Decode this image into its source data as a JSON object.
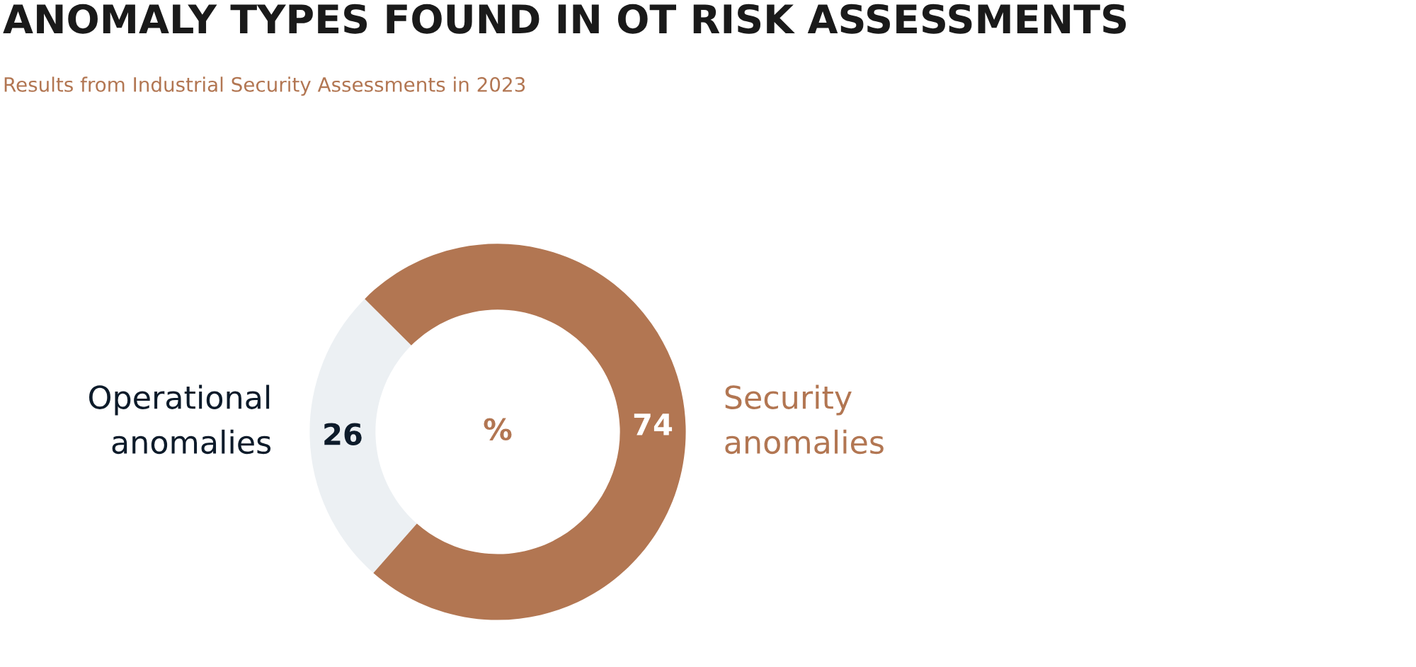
{
  "chart_data": {
    "type": "donut",
    "title": "ANOMALY TYPES FOUND IN OT RISK ASSESSMENTS",
    "subtitle": "Results from Industrial Security Assessments in 2023",
    "categories": [
      "Operational anomalies",
      "Security anomalies"
    ],
    "values": [
      26,
      74
    ],
    "colors": [
      "#ecf0f3",
      "#b27652"
    ],
    "data_labels": true,
    "annotations": [
      "%"
    ]
  }
}
